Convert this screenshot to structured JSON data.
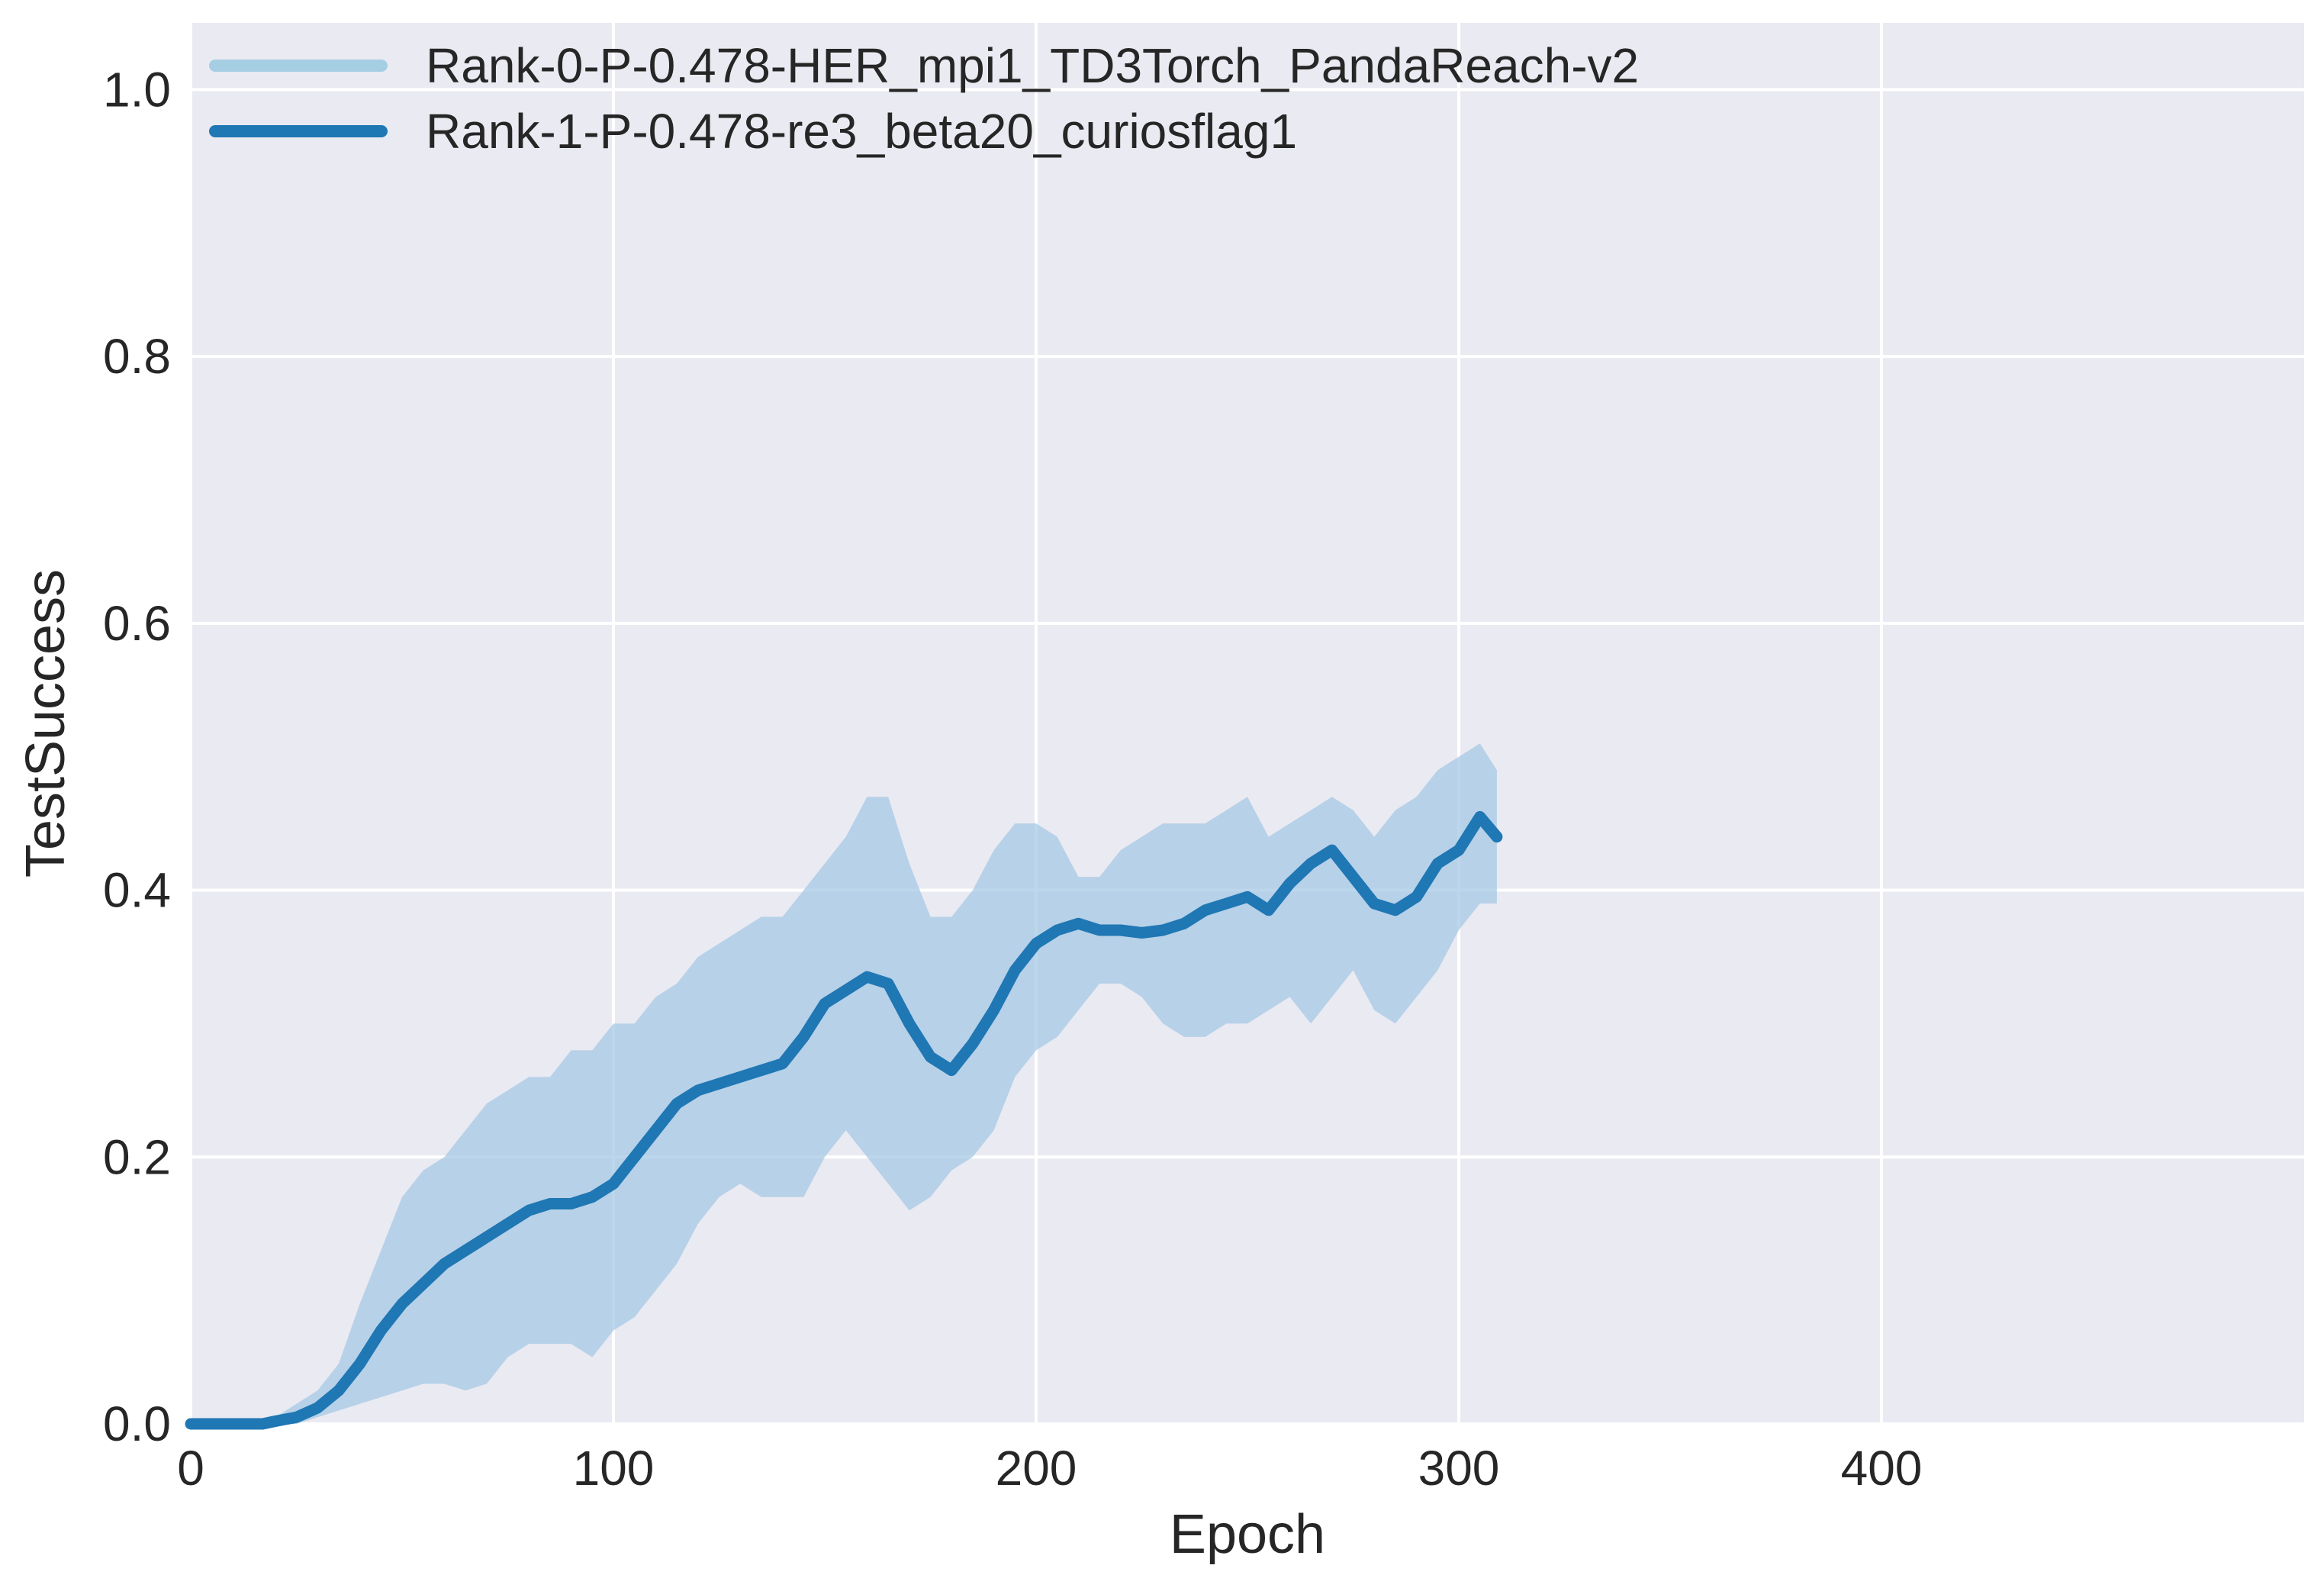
{
  "chart_data": {
    "type": "line",
    "title": "",
    "xlabel": "Epoch",
    "ylabel": "TestSuccess",
    "xlim": [
      0,
      500
    ],
    "ylim": [
      0,
      1.05
    ],
    "xticks": [
      0,
      100,
      200,
      300,
      400
    ],
    "yticks": [
      0.0,
      0.2,
      0.4,
      0.6,
      0.8,
      1.0
    ],
    "xtick_labels": [
      "0",
      "100",
      "200",
      "300",
      "400"
    ],
    "ytick_labels": [
      "0.0",
      "0.2",
      "0.4",
      "0.6",
      "0.8",
      "1.0"
    ],
    "grid": true,
    "legend_position": "top-left",
    "colors": {
      "background": "#eaeaf2",
      "grid": "#ffffff",
      "band": "#a6c8e4",
      "line": "#1f77b4",
      "legend_band": "#a6cee3",
      "legend_line": "#1f78b4"
    },
    "series": [
      {
        "name": "Rank-0-P-0.478-HER_mpi1_TD3Torch_PandaReach-v2",
        "kind": "band",
        "x": [
          0,
          17,
          20,
          25,
          30,
          35,
          40,
          45,
          50,
          55,
          60,
          65,
          70,
          75,
          80,
          85,
          90,
          95,
          100,
          105,
          110,
          115,
          120,
          125,
          130,
          135,
          140,
          145,
          150,
          155,
          160,
          165,
          170,
          175,
          180,
          185,
          190,
          195,
          200,
          205,
          210,
          215,
          220,
          225,
          230,
          235,
          240,
          245,
          250,
          255,
          260,
          265,
          270,
          275,
          280,
          285,
          290,
          295,
          300,
          305,
          309
        ],
        "upper": [
          0.0,
          0.0,
          0.005,
          0.015,
          0.025,
          0.045,
          0.09,
          0.13,
          0.17,
          0.19,
          0.2,
          0.22,
          0.24,
          0.25,
          0.26,
          0.26,
          0.28,
          0.28,
          0.3,
          0.3,
          0.32,
          0.33,
          0.35,
          0.36,
          0.37,
          0.38,
          0.38,
          0.4,
          0.42,
          0.44,
          0.47,
          0.47,
          0.42,
          0.38,
          0.38,
          0.4,
          0.43,
          0.45,
          0.45,
          0.44,
          0.41,
          0.41,
          0.43,
          0.44,
          0.45,
          0.45,
          0.45,
          0.46,
          0.47,
          0.44,
          0.45,
          0.46,
          0.47,
          0.46,
          0.44,
          0.46,
          0.47,
          0.49,
          0.5,
          0.51,
          0.49
        ],
        "lower": [
          0.0,
          0.0,
          0.0,
          0.0,
          0.005,
          0.01,
          0.015,
          0.02,
          0.025,
          0.03,
          0.03,
          0.025,
          0.03,
          0.05,
          0.06,
          0.06,
          0.06,
          0.05,
          0.07,
          0.08,
          0.1,
          0.12,
          0.15,
          0.17,
          0.18,
          0.17,
          0.17,
          0.17,
          0.2,
          0.22,
          0.2,
          0.18,
          0.16,
          0.17,
          0.19,
          0.2,
          0.22,
          0.26,
          0.28,
          0.29,
          0.31,
          0.33,
          0.33,
          0.32,
          0.3,
          0.29,
          0.29,
          0.3,
          0.3,
          0.31,
          0.32,
          0.3,
          0.32,
          0.34,
          0.31,
          0.3,
          0.32,
          0.34,
          0.37,
          0.39,
          0.39
        ]
      },
      {
        "name": "Rank-1-P-0.478-re3_beta20_curiosflag1",
        "kind": "line",
        "x": [
          0,
          17,
          20,
          25,
          30,
          35,
          40,
          45,
          50,
          55,
          60,
          65,
          70,
          75,
          80,
          85,
          90,
          95,
          100,
          105,
          110,
          115,
          120,
          125,
          130,
          135,
          140,
          145,
          150,
          155,
          160,
          165,
          170,
          175,
          180,
          185,
          190,
          195,
          200,
          205,
          210,
          215,
          220,
          225,
          230,
          235,
          240,
          245,
          250,
          255,
          260,
          265,
          270,
          275,
          280,
          285,
          290,
          295,
          300,
          305,
          309
        ],
        "y": [
          0.0,
          0.0,
          0.002,
          0.005,
          0.012,
          0.025,
          0.045,
          0.07,
          0.09,
          0.105,
          0.12,
          0.13,
          0.14,
          0.15,
          0.16,
          0.165,
          0.165,
          0.17,
          0.18,
          0.2,
          0.22,
          0.24,
          0.25,
          0.255,
          0.26,
          0.265,
          0.27,
          0.29,
          0.315,
          0.325,
          0.335,
          0.33,
          0.3,
          0.275,
          0.265,
          0.285,
          0.31,
          0.34,
          0.36,
          0.37,
          0.375,
          0.37,
          0.37,
          0.368,
          0.37,
          0.375,
          0.385,
          0.39,
          0.395,
          0.385,
          0.405,
          0.42,
          0.43,
          0.41,
          0.39,
          0.385,
          0.395,
          0.42,
          0.43,
          0.455,
          0.44
        ]
      }
    ]
  }
}
